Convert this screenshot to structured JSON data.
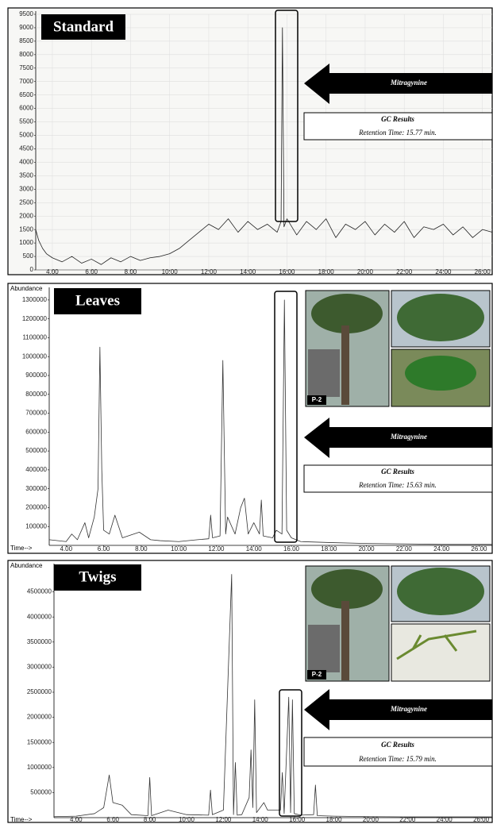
{
  "chart_data": [
    {
      "type": "line",
      "title": "Standard",
      "color": "#222222",
      "x": [
        3.15,
        3.3,
        3.5,
        3.7,
        4.0,
        4.5,
        5.0,
        5.5,
        6.0,
        6.5,
        7.0,
        7.5,
        8.0,
        8.5,
        9.0,
        9.5,
        10.0,
        10.5,
        11.0,
        11.5,
        12.0,
        12.5,
        13.0,
        13.5,
        14.0,
        14.5,
        15.0,
        15.5,
        15.7,
        15.77,
        15.85,
        16.0,
        16.5,
        17.0,
        17.5,
        18.0,
        18.5,
        19.0,
        19.5,
        20.0,
        20.5,
        21.0,
        21.5,
        22.0,
        22.5,
        23.0,
        23.5,
        24.0,
        24.5,
        25.0,
        25.5,
        26.0,
        26.5
      ],
      "values": [
        1500,
        1100,
        800,
        600,
        450,
        300,
        500,
        250,
        400,
        200,
        450,
        300,
        500,
        350,
        450,
        500,
        600,
        800,
        1100,
        1400,
        1700,
        1500,
        1900,
        1400,
        1800,
        1500,
        1700,
        1400,
        1800,
        9000,
        1600,
        1900,
        1300,
        1800,
        1500,
        1900,
        1200,
        1700,
        1500,
        1800,
        1300,
        1700,
        1400,
        1800,
        1200,
        1600,
        1500,
        1700,
        1300,
        1600,
        1200,
        1500,
        1400
      ],
      "xlim": [
        3.15,
        26.5
      ],
      "ylim": [
        0,
        9500
      ],
      "xticks": [
        {
          "value": 4,
          "label": "4.00"
        },
        {
          "value": 6,
          "label": "6.00"
        },
        {
          "value": 8,
          "label": "8.00"
        },
        {
          "value": 10,
          "label": "10.00"
        },
        {
          "value": 12,
          "label": "12.00"
        },
        {
          "value": 14,
          "label": "14.00"
        },
        {
          "value": 16,
          "label": "16.00"
        },
        {
          "value": 18,
          "label": "18.00"
        },
        {
          "value": 20,
          "label": "20.00"
        },
        {
          "value": 22,
          "label": "22.00"
        },
        {
          "value": 24,
          "label": "24.00"
        },
        {
          "value": 26,
          "label": "26.00"
        }
      ],
      "yticks": [
        0,
        500,
        1000,
        1500,
        2000,
        2500,
        3000,
        3500,
        4000,
        4500,
        5000,
        5500,
        6000,
        6500,
        7000,
        7500,
        8000,
        8500,
        9000,
        9500
      ],
      "grid": true,
      "annotations": {
        "arrow_label": "Mitragynine",
        "box_title": "GC Results",
        "box_text": "Retention Time:  15.77 min."
      }
    },
    {
      "type": "line",
      "title": "Leaves",
      "color": "#333333",
      "ylabel": "Abundance",
      "xlabel": "Time-->",
      "x": [
        3.1,
        4.0,
        4.3,
        4.6,
        5.0,
        5.2,
        5.5,
        5.7,
        5.8,
        5.9,
        6.0,
        6.3,
        6.6,
        6.8,
        7.0,
        7.6,
        7.9,
        8.5,
        9.0,
        10.0,
        11.0,
        11.6,
        11.7,
        11.8,
        12.2,
        12.35,
        12.5,
        12.6,
        13.0,
        13.3,
        13.5,
        13.7,
        14.0,
        14.3,
        14.4,
        14.5,
        15.0,
        15.2,
        15.5,
        15.63,
        15.75,
        16.0,
        16.5,
        18.0,
        20.0,
        22.0,
        24.0,
        26.7
      ],
      "values": [
        30000,
        20000,
        60000,
        30000,
        120000,
        40000,
        150000,
        300000,
        1050000,
        400000,
        80000,
        60000,
        160000,
        100000,
        40000,
        60000,
        70000,
        30000,
        25000,
        20000,
        30000,
        35000,
        160000,
        40000,
        50000,
        980000,
        60000,
        150000,
        60000,
        200000,
        250000,
        60000,
        120000,
        60000,
        240000,
        50000,
        40000,
        80000,
        60000,
        1300000,
        80000,
        40000,
        20000,
        15000,
        10000,
        8000,
        5000,
        5000
      ],
      "xlim": [
        3.1,
        26.7
      ],
      "ylim": [
        0,
        1350000
      ],
      "xticks": [
        {
          "value": 4,
          "label": "4.00"
        },
        {
          "value": 6,
          "label": "6.00"
        },
        {
          "value": 8,
          "label": "8.00"
        },
        {
          "value": 10,
          "label": "10.00"
        },
        {
          "value": 12,
          "label": "12.00"
        },
        {
          "value": 14,
          "label": "14.00"
        },
        {
          "value": 16,
          "label": "16.00"
        },
        {
          "value": 18,
          "label": "18.00"
        },
        {
          "value": 20,
          "label": "20.00"
        },
        {
          "value": 22,
          "label": "22.00"
        },
        {
          "value": 24,
          "label": "24.00"
        },
        {
          "value": 26,
          "label": "26.00"
        }
      ],
      "yticks": [
        100000,
        200000,
        300000,
        400000,
        500000,
        600000,
        700000,
        800000,
        900000,
        1000000,
        1100000,
        1200000,
        1300000
      ],
      "grid": false,
      "photo_label": "P-2",
      "annotations": {
        "arrow_label": "Mitragynine",
        "box_title": "GC Results",
        "box_text": "Retention Time:  15.63 min."
      }
    },
    {
      "type": "line",
      "title": "Twigs",
      "color": "#333333",
      "ylabel": "Abundance",
      "xlabel": "Time-->",
      "x": [
        2.8,
        4.0,
        5.0,
        5.5,
        5.8,
        6.0,
        6.5,
        7.0,
        7.9,
        8.0,
        8.1,
        9.0,
        10.0,
        11.2,
        11.3,
        11.4,
        12.0,
        12.45,
        12.55,
        12.65,
        12.75,
        13.0,
        13.4,
        13.5,
        13.6,
        13.7,
        13.8,
        14.2,
        14.4,
        15.1,
        15.2,
        15.3,
        15.55,
        15.65,
        15.75,
        15.85,
        16.2,
        16.9,
        17.0,
        17.1,
        18.0,
        20.0,
        22.0,
        24.0,
        26.6
      ],
      "values": [
        20000,
        30000,
        80000,
        200000,
        850000,
        300000,
        250000,
        60000,
        40000,
        800000,
        40000,
        150000,
        60000,
        50000,
        550000,
        60000,
        150000,
        4850000,
        60000,
        1100000,
        50000,
        60000,
        400000,
        1350000,
        200000,
        2350000,
        100000,
        300000,
        150000,
        150000,
        900000,
        80000,
        2400000,
        100000,
        2350000,
        80000,
        50000,
        60000,
        650000,
        40000,
        30000,
        20000,
        15000,
        15000,
        15000
      ],
      "xlim": [
        2.8,
        26.6
      ],
      "ylim": [
        0,
        5000000
      ],
      "xticks": [
        {
          "value": 4,
          "label": "4.00"
        },
        {
          "value": 6,
          "label": "6.00"
        },
        {
          "value": 8,
          "label": "8.00"
        },
        {
          "value": 10,
          "label": "10.00"
        },
        {
          "value": 12,
          "label": "12.00"
        },
        {
          "value": 14,
          "label": "14.00"
        },
        {
          "value": 16,
          "label": "16.00"
        },
        {
          "value": 18,
          "label": "18.00"
        },
        {
          "value": 20,
          "label": "20.00"
        },
        {
          "value": 22,
          "label": "22.00"
        },
        {
          "value": 24,
          "label": "24.00"
        },
        {
          "value": 26,
          "label": "26.00"
        }
      ],
      "yticks": [
        500000,
        1000000,
        1500000,
        2000000,
        2500000,
        3000000,
        3500000,
        4000000,
        4500000
      ],
      "grid": false,
      "photo_label": "P-2",
      "annotations": {
        "arrow_label": "Mitragynine",
        "box_title": "GC Results",
        "box_text": "Retention Time:  15.79 min."
      }
    }
  ]
}
